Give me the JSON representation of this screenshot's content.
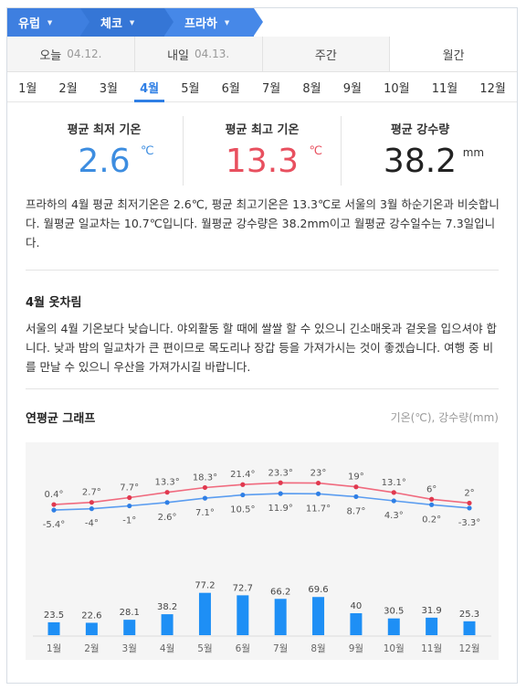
{
  "breadcrumb": [
    {
      "label": "유럽"
    },
    {
      "label": "체코"
    },
    {
      "label": "프라하"
    }
  ],
  "tabs": [
    {
      "label": "오늘",
      "date": "04.12."
    },
    {
      "label": "내일",
      "date": "04.13."
    },
    {
      "label": "주간",
      "date": ""
    },
    {
      "label": "월간",
      "date": ""
    }
  ],
  "months": [
    "1월",
    "2월",
    "3월",
    "4월",
    "5월",
    "6월",
    "7월",
    "8월",
    "9월",
    "10월",
    "11월",
    "12월"
  ],
  "active_month": "4월",
  "stats": {
    "min": {
      "label": "평균 최저 기온",
      "value": "2.6",
      "unit": "℃"
    },
    "max": {
      "label": "평균 최고 기온",
      "value": "13.3",
      "unit": "℃"
    },
    "rain": {
      "label": "평균 강수량",
      "value": "38.2",
      "unit": "mm"
    }
  },
  "summary": "프라하의 4월 평균 최저기온은 2.6℃, 평균 최고기온은 13.3℃로 서울의 3월 하순기온과 비슷합니다. 월평균 일교차는 10.7℃입니다. 월평균 강수량은 38.2mm이고 월평균 강수일수는 7.3일입니다.",
  "clothing": {
    "title": "4월 옷차림",
    "text": "서울의 4월 기온보다 낮습니다. 야외활동 할 때에 쌀쌀 할 수 있으니 긴소매옷과 겉옷을 입으셔야 합니다. 낮과 밤의 일교차가 큰 편이므로 목도리나 장갑 등을 가져가시는 것이 좋겠습니다. 여행 중 비를 만날 수 있으니 우산을 가져가시길 바랍니다."
  },
  "graph": {
    "title": "연평균 그래프",
    "subtitle": "기온(℃), 강수량(mm)"
  },
  "colors": {
    "max_line": "#f06a7e",
    "min_line": "#5b9df0",
    "bar": "#1e8ff5",
    "accent": "#2f7fe5"
  },
  "chart_data": {
    "type": "line+bar",
    "categories": [
      "1월",
      "2월",
      "3월",
      "4월",
      "5월",
      "6월",
      "7월",
      "8월",
      "9월",
      "10월",
      "11월",
      "12월"
    ],
    "series": [
      {
        "values": [
          0.4,
          2.7,
          7.7,
          13.3,
          18.3,
          21.4,
          23.3,
          23,
          19,
          13.1,
          6,
          2
        ],
        "labels": [
          "0.4°",
          "2.7°",
          "7.7°",
          "13.3°",
          "18.3°",
          "21.4°",
          "23.3°",
          "23°",
          "19°",
          "13.1°",
          "6°",
          "2°"
        ]
      },
      {
        "values": [
          -5.4,
          -4,
          -1,
          2.6,
          7.1,
          10.5,
          11.9,
          11.7,
          8.7,
          4.3,
          0.2,
          -3.3
        ],
        "labels": [
          "-5.4°",
          "-4°",
          "-1°",
          "2.6°",
          "7.1°",
          "10.5°",
          "11.9°",
          "11.7°",
          "8.7°",
          "4.3°",
          "0.2°",
          "-3.3°"
        ]
      },
      {
        "values": [
          23.5,
          22.6,
          28.1,
          38.2,
          77.2,
          72.7,
          66.2,
          69.6,
          40,
          30.5,
          31.9,
          25.3
        ],
        "labels": [
          "23.5",
          "22.6",
          "28.1",
          "38.2",
          "77.2",
          "72.7",
          "66.2",
          "69.6",
          "40",
          "30.5",
          "31.9",
          "25.3"
        ]
      }
    ],
    "title": "연평균 그래프",
    "ylabel": "기온(℃), 강수량(mm)"
  }
}
